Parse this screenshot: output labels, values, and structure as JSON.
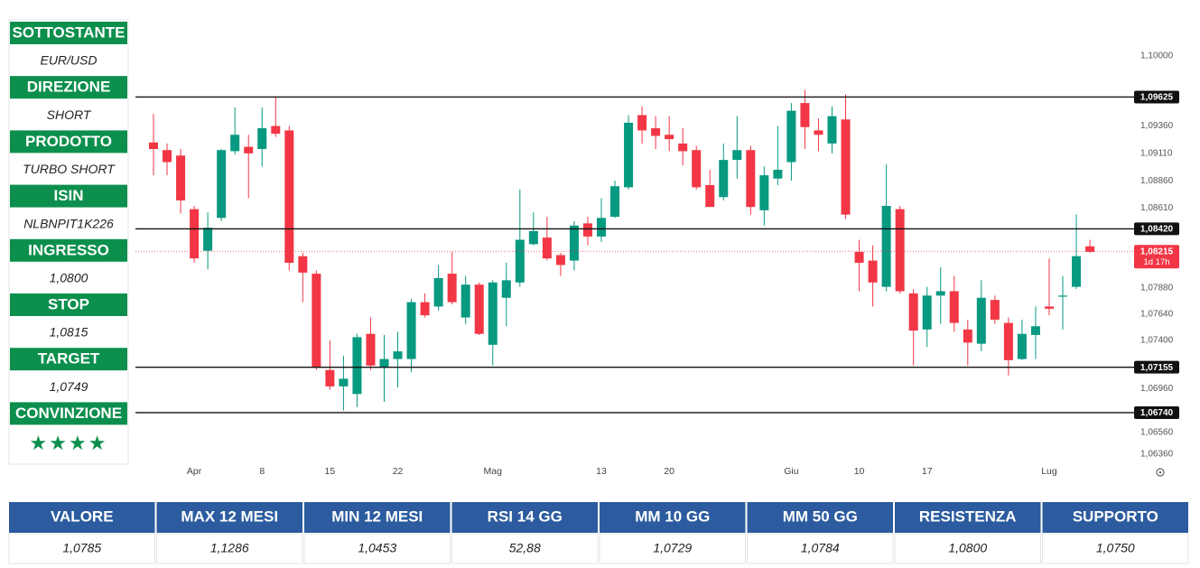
{
  "left_panel": [
    {
      "label": "SOTTOSTANTE",
      "value": "EUR/USD"
    },
    {
      "label": "DIREZIONE",
      "value": "SHORT"
    },
    {
      "label": "PRODOTTO",
      "value": "TURBO SHORT"
    },
    {
      "label": "ISIN",
      "value": "NLBNPIT1K226"
    },
    {
      "label": "INGRESSO",
      "value": "1,0800"
    },
    {
      "label": "STOP",
      "value": "1,0815"
    },
    {
      "label": "TARGET",
      "value": "1,0749"
    },
    {
      "label": "CONVINZIONE",
      "value": "★★★★"
    }
  ],
  "chart_data": {
    "type": "candlestick",
    "categories": [
      null,
      null,
      null,
      "Apr",
      null,
      null,
      null,
      null,
      "8",
      null,
      null,
      null,
      null,
      "15",
      null,
      null,
      null,
      null,
      "22",
      null,
      null,
      null,
      null,
      null,
      null,
      "Mag",
      null,
      null,
      null,
      null,
      null,
      null,
      null,
      "13",
      null,
      null,
      null,
      null,
      "20",
      null,
      null,
      null,
      null,
      null,
      null,
      null,
      null,
      "Giu",
      null,
      null,
      null,
      null,
      "10",
      null,
      null,
      null,
      null,
      "17",
      null,
      null,
      null,
      null,
      null,
      null,
      null,
      null,
      "Lug",
      null,
      null,
      null
    ],
    "open": [
      1.0921,
      1.0914,
      1.0909,
      1.086,
      1.0822,
      1.0852,
      1.0913,
      1.0917,
      1.0915,
      1.0936,
      1.0932,
      1.0817,
      1.0801,
      1.0713,
      1.0698,
      1.0691,
      1.0746,
      1.0715,
      1.0723,
      1.0723,
      1.0775,
      1.0771,
      1.0801,
      1.0761,
      1.0791,
      1.0736,
      1.0779,
      1.0793,
      1.0828,
      1.0834,
      1.0818,
      1.0813,
      1.0847,
      1.0835,
      1.0853,
      1.088,
      1.0946,
      1.0934,
      1.0928,
      1.092,
      1.0914,
      1.0882,
      1.0871,
      1.0905,
      1.0914,
      1.0859,
      1.0888,
      1.0903,
      1.0957,
      1.0932,
      1.092,
      1.0942,
      1.0821,
      1.0813,
      1.0789,
      1.086,
      1.0783,
      1.075,
      1.0781,
      1.0785,
      1.075,
      1.0737,
      1.0777,
      1.0756,
      1.0723,
      1.0745,
      1.0771,
      1.078,
      1.0789,
      1.0826
    ],
    "high": [
      1.0947,
      1.092,
      1.0915,
      1.0863,
      1.0857,
      1.0915,
      1.0953,
      1.0928,
      1.0953,
      1.0963,
      1.0936,
      1.082,
      1.0804,
      1.074,
      1.0726,
      1.0746,
      1.0761,
      1.0745,
      1.0748,
      1.0778,
      1.0783,
      1.0809,
      1.0821,
      1.0799,
      1.0793,
      1.0795,
      1.0811,
      1.0878,
      1.0857,
      1.0853,
      1.082,
      1.0849,
      1.0853,
      1.087,
      1.0886,
      1.0946,
      1.0954,
      1.0945,
      1.0945,
      1.0934,
      1.0918,
      1.0896,
      1.092,
      1.0945,
      1.0918,
      1.0899,
      1.0936,
      1.0957,
      1.0969,
      1.0943,
      1.0954,
      1.0965,
      1.0832,
      1.0827,
      1.0901,
      1.0863,
      1.0787,
      1.0789,
      1.0807,
      1.0799,
      1.0759,
      1.0795,
      1.0781,
      1.0761,
      1.0759,
      1.0771,
      1.0815,
      1.0799,
      1.0855,
      1.0832
    ],
    "low": [
      1.0891,
      1.0891,
      1.0856,
      1.0811,
      1.0805,
      1.0849,
      1.091,
      1.087,
      1.0899,
      1.0926,
      1.0804,
      1.0775,
      1.0713,
      1.0695,
      1.0676,
      1.0679,
      1.0713,
      1.0684,
      1.0697,
      1.0711,
      1.0761,
      1.0767,
      1.0773,
      1.0755,
      1.0745,
      1.0717,
      1.0753,
      1.0789,
      1.0827,
      1.0813,
      1.0799,
      1.0804,
      1.0827,
      1.083,
      1.0852,
      1.0878,
      1.092,
      1.0915,
      1.0913,
      1.09,
      1.0878,
      1.0862,
      1.0868,
      1.0888,
      1.0855,
      1.0845,
      1.0882,
      1.0886,
      1.0915,
      1.0913,
      1.0911,
      1.0851,
      1.0785,
      1.0771,
      1.0785,
      1.0783,
      1.0717,
      1.0734,
      1.0755,
      1.0748,
      1.0717,
      1.073,
      1.0755,
      1.0708,
      1.0722,
      1.0723,
      1.0763,
      1.075,
      1.0787,
      1.082
    ],
    "close": [
      1.0915,
      1.0903,
      1.0868,
      1.0815,
      1.0843,
      1.0914,
      1.0928,
      1.0911,
      1.0934,
      1.0929,
      1.0811,
      1.0802,
      1.0715,
      1.0698,
      1.0705,
      1.0743,
      1.0717,
      1.0723,
      1.073,
      1.0775,
      1.0763,
      1.0797,
      1.0775,
      1.0791,
      1.0746,
      1.0793,
      1.0795,
      1.0832,
      1.084,
      1.0815,
      1.0809,
      1.0845,
      1.0835,
      1.0852,
      1.0881,
      1.0939,
      1.0932,
      1.0927,
      1.0924,
      1.0913,
      1.088,
      1.0862,
      1.0905,
      1.0914,
      1.0862,
      1.0891,
      1.0896,
      1.095,
      1.0935,
      1.0928,
      1.0945,
      1.0855,
      1.0811,
      1.0793,
      1.0863,
      1.0785,
      1.0749,
      1.0781,
      1.0785,
      1.0756,
      1.0738,
      1.0779,
      1.0759,
      1.0722,
      1.0746,
      1.0753,
      1.0769,
      1.0781,
      1.0817,
      1.0821
    ],
    "up_color": "#089981",
    "down_color": "#f23645",
    "ylim": [
      1.06302,
      1.10347
    ],
    "yticks": [
      {
        "value": 1.1,
        "label": "1,10000"
      },
      {
        "value": 1.0936,
        "label": "1,09360"
      },
      {
        "value": 1.0911,
        "label": "1,09110"
      },
      {
        "value": 1.0886,
        "label": "1,08860"
      },
      {
        "value": 1.0861,
        "label": "1,08610"
      },
      {
        "value": 1.0788,
        "label": "1,07880"
      },
      {
        "value": 1.0764,
        "label": "1,07640"
      },
      {
        "value": 1.074,
        "label": "1,07400"
      },
      {
        "value": 1.0696,
        "label": "1,06960"
      },
      {
        "value": 1.0656,
        "label": "1,06560"
      },
      {
        "value": 1.0636,
        "label": "1,06360"
      }
    ],
    "levels": [
      {
        "value": 1.09625,
        "label": "1,09625"
      },
      {
        "value": 1.0842,
        "label": "1,08420"
      },
      {
        "value": 1.07155,
        "label": "1,07155"
      },
      {
        "value": 1.0674,
        "label": "1,06740"
      }
    ],
    "current_price": {
      "value": 1.08215,
      "label": "1,08215",
      "countdown": "1d 17h"
    }
  },
  "table": {
    "headers": [
      "VALORE",
      "MAX 12 MESI",
      "MIN 12 MESI",
      "RSI 14 GG",
      "MM 10 GG",
      "MM 50 GG",
      "RESISTENZA",
      "SUPPORTO"
    ],
    "values": [
      "1,0785",
      "1,1286",
      "1,0453",
      "52,88",
      "1,0729",
      "1,0784",
      "1,0800",
      "1,0750"
    ]
  }
}
